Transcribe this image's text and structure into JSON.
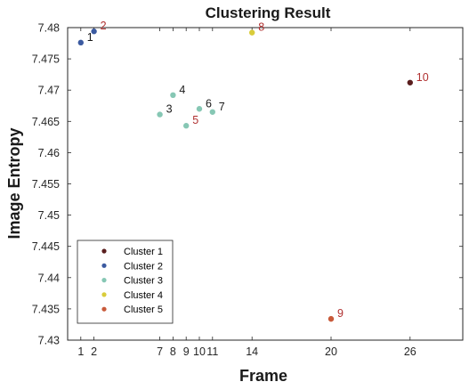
{
  "chart_data": {
    "type": "scatter",
    "title": "Clustering Result",
    "xlabel": "Frame",
    "ylabel": "Image Entropy",
    "xlim": [
      0,
      30
    ],
    "ylim": [
      7.43,
      7.48
    ],
    "xticks": [
      "1",
      "2",
      "7",
      "8",
      "9",
      "10",
      "11",
      "14",
      "20",
      "26"
    ],
    "yticks": [
      "7.43",
      "7.435",
      "7.44",
      "7.445",
      "7.45",
      "7.455",
      "7.46",
      "7.465",
      "7.47",
      "7.475",
      "7.48"
    ],
    "grid": false,
    "legend_position": "bottom-left",
    "series": [
      {
        "name": "Cluster 1",
        "color": "#5a1e1e",
        "points": [
          {
            "x": 26,
            "y": 7.4712,
            "label": "10"
          }
        ]
      },
      {
        "name": "Cluster 2",
        "color": "#3b5aa0",
        "points": [
          {
            "x": 1,
            "y": 7.4776,
            "label": "1"
          },
          {
            "x": 2,
            "y": 7.4794,
            "label": "2"
          }
        ]
      },
      {
        "name": "Cluster 3",
        "color": "#86c7b4",
        "points": [
          {
            "x": 7,
            "y": 7.4661,
            "label": "3"
          },
          {
            "x": 8,
            "y": 7.4692,
            "label": "4"
          },
          {
            "x": 9,
            "y": 7.4643,
            "label": "5"
          },
          {
            "x": 10,
            "y": 7.467,
            "label": "6"
          },
          {
            "x": 11,
            "y": 7.4665,
            "label": "7"
          }
        ]
      },
      {
        "name": "Cluster 4",
        "color": "#d9cc3a",
        "points": [
          {
            "x": 14,
            "y": 7.4792,
            "label": "8"
          }
        ]
      },
      {
        "name": "Cluster 5",
        "color": "#c85a3a",
        "points": [
          {
            "x": 20,
            "y": 7.4334,
            "label": "9"
          }
        ]
      }
    ],
    "label_colors": {
      "red": "#b03030",
      "black": "#1a1a1a"
    },
    "red_labels": [
      "2",
      "5",
      "8",
      "9",
      "10"
    ]
  }
}
